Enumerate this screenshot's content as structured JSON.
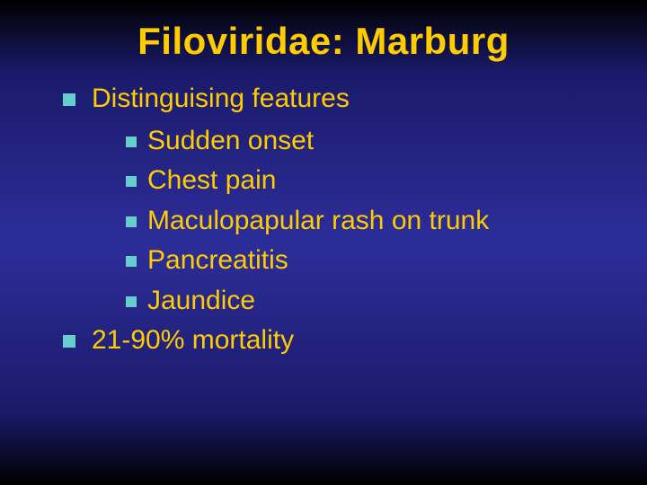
{
  "slide": {
    "title": "Filoviridae: Marburg",
    "background_gradient": [
      "#000000",
      "#2d2d9a",
      "#000000"
    ],
    "title_color": "#ffcc00",
    "text_color": "#ffcc00",
    "bullet_color": "#66cccc",
    "title_fontsize": 42,
    "body_fontsize": 30,
    "items": [
      {
        "text": "Distinguising features",
        "children": [
          {
            "text": "Sudden onset"
          },
          {
            "text": "Chest pain"
          },
          {
            "text": "Maculopapular rash on trunk"
          },
          {
            "text": "Pancreatitis"
          },
          {
            "text": "Jaundice"
          }
        ]
      },
      {
        "text": "21-90% mortality",
        "children": []
      }
    ]
  }
}
